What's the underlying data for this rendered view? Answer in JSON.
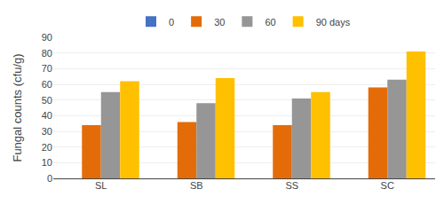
{
  "chart_data": {
    "type": "bar",
    "categories": [
      "SL",
      "SB",
      "SS",
      "SC"
    ],
    "series": [
      {
        "name": "0",
        "color": "#4472C4",
        "values": [
          0,
          0,
          0,
          0
        ]
      },
      {
        "name": "30",
        "color": "#E36C09",
        "values": [
          34,
          36,
          34,
          58
        ]
      },
      {
        "name": "60",
        "color": "#969696",
        "values": [
          55,
          48,
          51,
          63
        ]
      },
      {
        "name": "90 days",
        "color": "#FFC000",
        "values": [
          62,
          64,
          55,
          81
        ]
      }
    ],
    "ylabel": "Fungal counts (cfu/g)",
    "ylim": [
      0,
      90
    ],
    "yticks": [
      0,
      10,
      20,
      30,
      40,
      50,
      60,
      70,
      80,
      90
    ],
    "grid": true,
    "legend": "top"
  }
}
